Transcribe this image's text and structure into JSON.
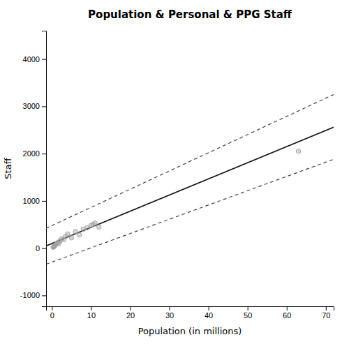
{
  "chart_data": {
    "type": "scatter",
    "title": "Population & Personal & PPG Staff",
    "xlabel": "Population (in millions)",
    "ylabel": "Staff",
    "xlim": [
      -1.5,
      72
    ],
    "ylim": [
      -1230,
      4600
    ],
    "xticks": [
      0,
      10,
      20,
      30,
      40,
      50,
      60,
      70
    ],
    "yticks": [
      -1000,
      0,
      1000,
      2000,
      3000,
      4000
    ],
    "grid": false,
    "series": [
      {
        "type": "scatter",
        "marker": "circle",
        "color": "#a0a0a0",
        "x": [
          0.3,
          0.5,
          0.6,
          0.8,
          1.0,
          1.2,
          1.5,
          1.8,
          2.0,
          2.5,
          3.0,
          3.5,
          4.0,
          5.0,
          6.0,
          7.0,
          8.0,
          9.0,
          10.0,
          10.5,
          11.0,
          12.0,
          63.0
        ],
        "values": [
          20,
          30,
          50,
          60,
          80,
          100,
          120,
          100,
          150,
          200,
          180,
          250,
          300,
          220,
          350,
          280,
          400,
          430,
          480,
          500,
          530,
          450,
          2050
        ]
      },
      {
        "type": "line",
        "line_style": "dashed",
        "color": "#404040",
        "x": [
          -1.5,
          72
        ],
        "values": [
          420,
          3250
        ]
      },
      {
        "type": "line",
        "line_style": "dashed",
        "color": "#404040",
        "x": [
          -1.5,
          72
        ],
        "values": [
          -340,
          1880
        ]
      },
      {
        "type": "line",
        "line_style": "solid",
        "color": "#1a1a1a",
        "x": [
          -1.5,
          72
        ],
        "values": [
          47,
          2560
        ]
      }
    ]
  }
}
